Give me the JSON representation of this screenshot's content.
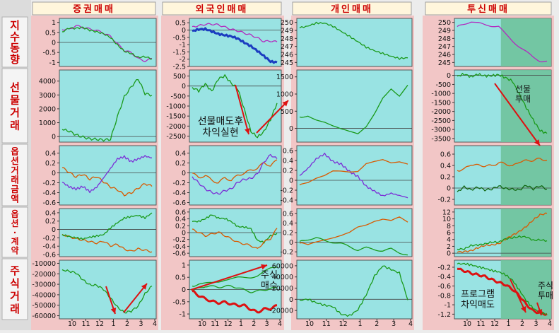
{
  "colors": {
    "plot_bg": "#99e3e3",
    "plot_bg_shaded": "#6fc29b",
    "panel_bg": "#f2c6c6",
    "header_bg": "#fff6dc",
    "header_text": "#cc0000",
    "green": "#1a9a1a",
    "purple": "#b22bbf",
    "blue": "#1b3cc0",
    "orange": "#d95a00",
    "violet": "#7b2fd6",
    "red": "#dd1111",
    "magenta": "#cc2277",
    "dark_green": "#116611"
  },
  "headers": {
    "col1": "증권매매",
    "col2": "외국인매매",
    "col3": "개인매매",
    "col4": "투신매매"
  },
  "row_labels": [
    "지수동향",
    "선물거래",
    "옵션거래금액",
    "옵션·계약",
    "주식거래"
  ],
  "x_axis_ticks": [
    "10",
    "11",
    "12",
    "1",
    "2",
    "3",
    "4"
  ],
  "annotations": {
    "foreign_futures": [
      "선물매도후",
      "차익실현"
    ],
    "foreign_stock": [
      "주식",
      "매수"
    ],
    "trust_futures": [
      "선물",
      "투매"
    ],
    "trust_stock": [
      "주식",
      "투매"
    ],
    "trust_program": [
      "프로그램",
      "차익매도"
    ]
  },
  "chart_data": [
    {
      "type": "line",
      "column": "증권매매",
      "row": "지수동향",
      "yticks": [
        "1",
        "0.5",
        "0",
        "-0.5",
        "-1"
      ],
      "ylim": [
        -1.2,
        1.2
      ],
      "series": [
        {
          "color": "purple",
          "values": [
            0.6,
            0.7,
            0.8,
            0.75,
            0.7,
            0.55,
            0.5,
            0.3,
            -0.1,
            -0.35,
            -0.55,
            -0.8,
            -0.9,
            -0.85
          ]
        },
        {
          "color": "green",
          "values": [
            0.55,
            0.68,
            0.75,
            0.7,
            0.65,
            0.5,
            0.45,
            0.25,
            -0.15,
            -0.4,
            -0.6,
            -0.7,
            -0.75,
            -0.8
          ]
        }
      ]
    },
    {
      "type": "line",
      "column": "외국인매매",
      "row": "지수동향",
      "yticks": [
        "0.5",
        "0",
        "-0.5",
        "-1",
        "-1.5",
        "-2",
        "-2.5"
      ],
      "ylim": [
        -2.5,
        0.8
      ],
      "series": [
        {
          "color": "purple",
          "values": [
            0.3,
            0.35,
            0.4,
            0.35,
            0.3,
            0.2,
            0.1,
            0.0,
            -0.2,
            -0.4,
            -0.6,
            -0.8,
            -0.7,
            -0.75
          ]
        },
        {
          "color": "blue",
          "values": [
            0.0,
            0.05,
            0.0,
            -0.1,
            -0.2,
            -0.35,
            -0.5,
            -0.6,
            -0.8,
            -1.1,
            -1.5,
            -1.8,
            -2.1,
            -2.2
          ]
        }
      ]
    },
    {
      "type": "line",
      "column": "개인매매",
      "row": "지수동향",
      "yticks": [
        "250",
        "249",
        "248",
        "247",
        "246",
        "245"
      ],
      "ylim": [
        244.5,
        250.5
      ],
      "series": [
        {
          "color": "green",
          "values": [
            249.2,
            249.6,
            250.0,
            249.8,
            249.5,
            249.0,
            248.2,
            247.5,
            247.0,
            246.5,
            246.0,
            245.8,
            245.6,
            245.5
          ]
        }
      ]
    },
    {
      "type": "line",
      "column": "투신매매",
      "row": "지수동향",
      "yticks": [
        "250",
        "249",
        "248",
        "247",
        "246",
        "245"
      ],
      "ylim": [
        244.5,
        250.5
      ],
      "series": [
        {
          "color": "purple",
          "values": [
            249.6,
            249.8,
            250.0,
            249.9,
            249.8,
            249.6,
            249.4,
            248.5,
            247.8,
            247.0,
            246.2,
            245.6,
            245.3,
            245.2
          ]
        }
      ]
    },
    {
      "type": "line",
      "column": "증권매매",
      "row": "선물거래",
      "yticks": [
        "4000",
        "3000",
        "2000",
        "1000",
        "0"
      ],
      "ylim": [
        -400,
        4800
      ],
      "series": [
        {
          "color": "green",
          "values": [
            400,
            350,
            200,
            50,
            -200,
            -300,
            -250,
            -100,
            1500,
            2800,
            3500,
            4200,
            3200,
            3000
          ]
        }
      ]
    },
    {
      "type": "line",
      "column": "외국인매매",
      "row": "선물거래",
      "yticks": [
        "500",
        "0",
        "-500",
        "-1000",
        "-1500",
        "-2000",
        "-2500"
      ],
      "ylim": [
        -2800,
        800
      ],
      "series": [
        {
          "color": "green",
          "values": [
            0,
            -300,
            100,
            -200,
            300,
            500,
            200,
            -200,
            -1200,
            -2200,
            -2600,
            -2300,
            -1600,
            -900
          ]
        }
      ]
    },
    {
      "type": "line",
      "column": "개인매매",
      "row": "선물거래",
      "yticks": [
        "1500",
        "1000",
        "500",
        "0"
      ],
      "ylim": [
        -400,
        1700
      ],
      "series": [
        {
          "color": "green",
          "values": [
            300,
            350,
            250,
            200,
            100,
            0,
            -100,
            -200,
            0,
            400,
            900,
            1200,
            1000,
            1300
          ]
        }
      ]
    },
    {
      "type": "line",
      "column": "투신매매",
      "row": "선물거래",
      "yticks": [
        "0",
        "-500",
        "-1000",
        "-1500",
        "-2000",
        "-2500",
        "-3000",
        "-3500"
      ],
      "ylim": [
        -3700,
        300
      ],
      "series": [
        {
          "color": "green",
          "values": [
            0,
            0,
            0,
            0,
            0,
            0,
            -20,
            -50,
            -400,
            -1000,
            -1800,
            -2500,
            -3000,
            -3300
          ]
        }
      ]
    },
    {
      "type": "line",
      "column": "증권매매",
      "row": "옵션거래금액",
      "yticks": [
        "0.4",
        "0.2",
        "0",
        "-0.2",
        "-0.4",
        "-0.6"
      ],
      "ylim": [
        -0.65,
        0.55
      ],
      "series": [
        {
          "color": "orange",
          "values": [
            0.1,
            0.0,
            -0.1,
            -0.05,
            -0.15,
            -0.1,
            -0.2,
            -0.3,
            -0.35,
            -0.45,
            -0.4,
            -0.3,
            -0.2,
            -0.25
          ]
        },
        {
          "color": "violet",
          "values": [
            -0.2,
            -0.3,
            -0.35,
            -0.3,
            -0.4,
            -0.3,
            -0.1,
            0.1,
            0.3,
            0.35,
            0.25,
            0.3,
            0.35,
            0.3
          ]
        }
      ]
    },
    {
      "type": "line",
      "column": "외국인매매",
      "row": "옵션거래금액",
      "yticks": [
        "0.4",
        "0.2",
        "0",
        "-0.2",
        "-0.4",
        "-0.6"
      ],
      "ylim": [
        -0.65,
        0.55
      ],
      "series": [
        {
          "color": "orange",
          "values": [
            0.0,
            -0.1,
            -0.05,
            -0.15,
            -0.2,
            -0.1,
            -0.15,
            -0.05,
            0.0,
            0.05,
            0.1,
            0.2,
            0.15,
            0.25
          ]
        },
        {
          "color": "violet",
          "values": [
            -0.1,
            -0.2,
            -0.3,
            -0.4,
            -0.45,
            -0.35,
            -0.3,
            -0.2,
            -0.15,
            -0.1,
            0.0,
            0.2,
            0.35,
            0.3
          ]
        }
      ]
    },
    {
      "type": "line",
      "column": "개인매매",
      "row": "옵션거래금액",
      "yticks": [
        "0.6",
        "0.4",
        "0.2",
        "0",
        "-0.2",
        "-0.4"
      ],
      "ylim": [
        -0.5,
        0.7
      ],
      "series": [
        {
          "color": "violet",
          "values": [
            0.1,
            0.25,
            0.45,
            0.55,
            0.4,
            0.35,
            0.2,
            0.1,
            -0.1,
            -0.2,
            -0.3,
            -0.25,
            -0.3,
            -0.35
          ]
        },
        {
          "color": "orange",
          "values": [
            -0.1,
            -0.05,
            0.0,
            0.1,
            0.15,
            0.2,
            0.15,
            0.2,
            0.35,
            0.4,
            0.45,
            0.35,
            0.4,
            0.3
          ]
        }
      ]
    },
    {
      "type": "line",
      "column": "투신매매",
      "row": "옵션거래금액",
      "yticks": [
        "0.6",
        "0.4",
        "0.2",
        "0",
        "-0.2"
      ],
      "ylim": [
        -0.3,
        0.75
      ],
      "series": [
        {
          "color": "orange",
          "values": [
            0.3,
            0.35,
            0.4,
            0.42,
            0.38,
            0.4,
            0.45,
            0.42,
            0.4,
            0.45,
            0.5,
            0.48,
            0.52,
            0.5
          ]
        },
        {
          "color": "dark_green",
          "values": [
            -0.05,
            0.0,
            -0.02,
            0.02,
            -0.05,
            0.0,
            0.03,
            -0.02,
            0.0,
            -0.05,
            0.05,
            0.0,
            0.02,
            -0.01
          ]
        }
      ]
    },
    {
      "type": "line",
      "column": "증권매매",
      "row": "옵션·계약",
      "yticks": [
        "0.4",
        "0.2",
        "0",
        "-0.2",
        "-0.4",
        "-0.6"
      ],
      "ylim": [
        -0.65,
        0.5
      ],
      "series": [
        {
          "color": "orange",
          "values": [
            -0.1,
            -0.15,
            -0.2,
            -0.25,
            -0.3,
            -0.35,
            -0.3,
            -0.4,
            -0.35,
            -0.45,
            -0.5,
            -0.45,
            -0.5,
            -0.55
          ]
        },
        {
          "color": "green",
          "values": [
            -0.1,
            -0.15,
            -0.2,
            -0.25,
            -0.2,
            -0.15,
            -0.1,
            0.05,
            0.15,
            0.25,
            0.3,
            0.35,
            0.3,
            0.4
          ]
        }
      ]
    },
    {
      "type": "line",
      "column": "외국인매매",
      "row": "옵션·계약",
      "yticks": [
        "0.6",
        "0.4",
        "0.2",
        "0",
        "-0.2",
        "-0.4",
        "-0.6"
      ],
      "ylim": [
        -0.7,
        0.7
      ],
      "series": [
        {
          "color": "green",
          "values": [
            0.3,
            0.35,
            0.4,
            0.5,
            0.45,
            0.4,
            0.3,
            0.2,
            0.15,
            0.1,
            -0.2,
            -0.3,
            -0.1,
            0.0
          ]
        },
        {
          "color": "orange",
          "values": [
            0.1,
            0.0,
            -0.1,
            -0.05,
            0.0,
            -0.1,
            -0.2,
            -0.3,
            -0.35,
            -0.4,
            -0.5,
            -0.3,
            -0.2,
            0.1
          ]
        }
      ]
    },
    {
      "type": "line",
      "column": "개인매매",
      "row": "옵션·계약",
      "yticks": [
        "0.6",
        "0.4",
        "0.2",
        "0",
        "-0.2"
      ],
      "ylim": [
        -0.3,
        0.7
      ],
      "series": [
        {
          "color": "orange",
          "values": [
            0.0,
            -0.05,
            0.0,
            0.05,
            0.1,
            0.15,
            0.2,
            0.3,
            0.35,
            0.45,
            0.5,
            0.45,
            0.5,
            0.4
          ]
        },
        {
          "color": "green",
          "values": [
            0.0,
            0.05,
            0.1,
            0.05,
            0.0,
            -0.05,
            -0.1,
            -0.15,
            -0.1,
            -0.15,
            -0.2,
            -0.15,
            -0.2,
            -0.25
          ]
        }
      ]
    },
    {
      "type": "line",
      "column": "투신매매",
      "row": "옵션·계약",
      "yticks": [
        "12",
        "10",
        "8",
        "6",
        "4",
        "2",
        "0"
      ],
      "ylim": [
        -1,
        13
      ],
      "series": [
        {
          "color": "orange",
          "values": [
            0.0,
            0.5,
            1.0,
            1.5,
            2.0,
            2.5,
            3.0,
            4.0,
            5.0,
            6.5,
            8.0,
            9.5,
            11.0,
            11.8
          ]
        },
        {
          "color": "green",
          "values": [
            1.0,
            1.5,
            2.0,
            2.5,
            2.8,
            3.0,
            3.5,
            4.0,
            4.5,
            5.0,
            4.5,
            4.0,
            3.8,
            3.5
          ]
        }
      ]
    },
    {
      "type": "line",
      "column": "증권매매",
      "row": "주식거래",
      "yticks": [
        "-10000",
        "-20000",
        "-30000",
        "-40000",
        "-50000",
        "-60000"
      ],
      "ylim": [
        -63000,
        -7000
      ],
      "series": [
        {
          "color": "green",
          "values": [
            -15000,
            -18000,
            -20000,
            -25000,
            -30000,
            -32000,
            -35000,
            -42000,
            -52000,
            -58000,
            -55000,
            -50000,
            -40000,
            -32000
          ]
        }
      ]
    },
    {
      "type": "line",
      "column": "외국인매매",
      "row": "주식거래",
      "yticks": [
        "1",
        "0.5",
        "0",
        "-0.5",
        "-1"
      ],
      "ylim": [
        -1.2,
        1.2
      ],
      "series": [
        {
          "color": "green",
          "values": [
            0.1,
            0.2,
            0.25,
            0.3,
            0.35,
            0.4,
            0.4,
            0.45,
            0.5,
            0.55,
            0.6,
            0.7,
            0.8,
            0.9
          ]
        },
        {
          "color": "green",
          "values": [
            0.0,
            0.05,
            0.1,
            0.1,
            0.15,
            0.15,
            0.1,
            0.05,
            0.0,
            -0.05,
            -0.1,
            -0.05,
            0.05,
            0.1
          ]
        },
        {
          "color": "red",
          "values": [
            -0.1,
            -0.2,
            -0.4,
            -0.5,
            -0.5,
            -0.55,
            -0.6,
            -0.6,
            -0.7,
            -0.8,
            -0.9,
            -0.85,
            -0.75,
            -0.65
          ]
        }
      ]
    },
    {
      "type": "line",
      "column": "개인매매",
      "row": "주식거래",
      "yticks": [
        "60000",
        "40000",
        "20000",
        "0",
        "-20000"
      ],
      "ylim": [
        -35000,
        70000
      ],
      "series": [
        {
          "color": "green",
          "values": [
            0,
            -2000,
            -5000,
            -10000,
            -15000,
            -25000,
            -30000,
            -20000,
            10000,
            40000,
            60000,
            55000,
            45000,
            0
          ]
        }
      ]
    },
    {
      "type": "line",
      "column": "투신매매",
      "row": "주식거래",
      "yticks": [
        "-0.2",
        "-0.4",
        "-0.6",
        "-0.8",
        "-1",
        "-1.2"
      ],
      "ylim": [
        -1.3,
        -0.05
      ],
      "series": [
        {
          "color": "red",
          "values": [
            -0.25,
            -0.3,
            -0.35,
            -0.38,
            -0.4,
            -0.45,
            -0.5,
            -0.55,
            -0.65,
            -0.8,
            -1.0,
            -1.15,
            -1.2,
            -1.22
          ]
        },
        {
          "color": "green",
          "values": [
            -0.15,
            -0.15,
            -0.16,
            -0.18,
            -0.2,
            -0.25,
            -0.3,
            -0.38,
            -0.5,
            -0.7,
            -0.9,
            -1.05,
            -1.15,
            -1.2
          ]
        }
      ]
    }
  ]
}
